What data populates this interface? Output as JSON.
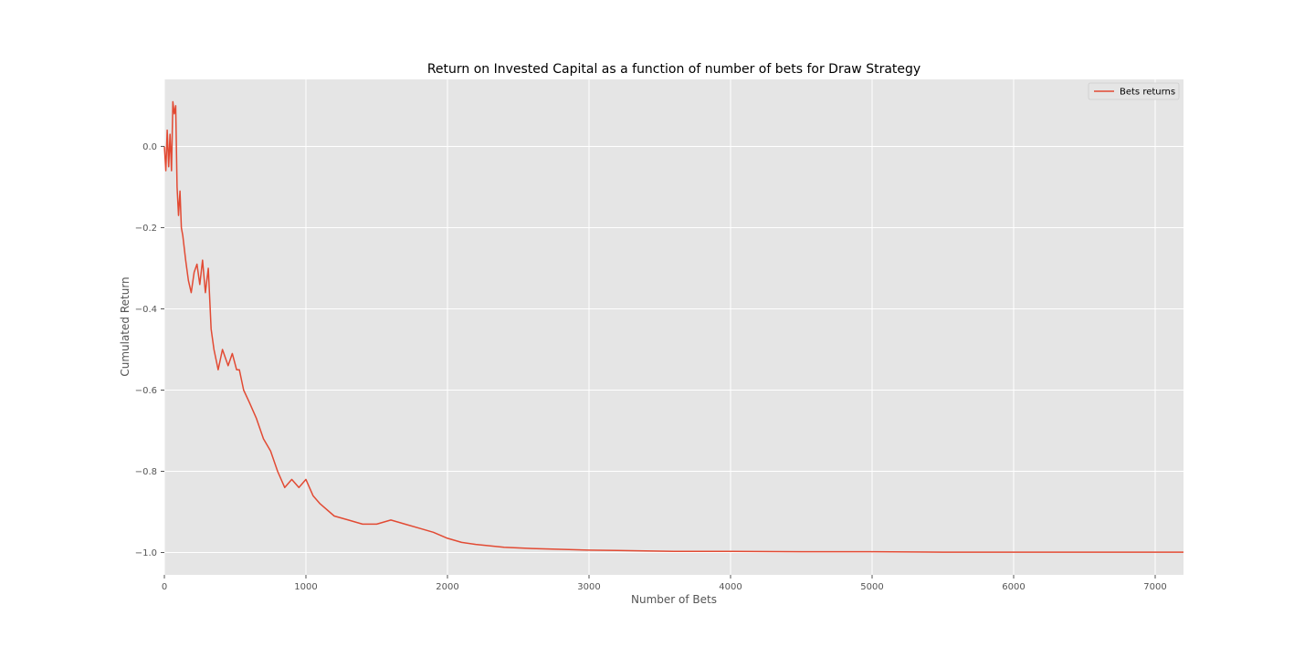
{
  "chart_data": {
    "type": "line",
    "title": "Return on Invested Capital as a function of number of bets for Draw Strategy",
    "xlabel": "Number of Bets",
    "ylabel": "Cumulated Return",
    "xlim": [
      0,
      7200
    ],
    "ylim": [
      -1.055,
      0.165
    ],
    "x_ticks": [
      0,
      1000,
      2000,
      3000,
      4000,
      5000,
      6000,
      7000
    ],
    "y_ticks": [
      0.0,
      -0.2,
      -0.4,
      -0.6,
      -0.8,
      -1.0
    ],
    "x_tick_labels": [
      "0",
      "1000",
      "2000",
      "3000",
      "4000",
      "5000",
      "6000",
      "7000"
    ],
    "y_tick_labels": [
      "0.0",
      "−0.2",
      "−0.4",
      "−0.6",
      "−0.8",
      "−1.0"
    ],
    "grid": true,
    "legend_position": "top-right",
    "colors": {
      "background": "#e5e5e5",
      "grid": "#ffffff",
      "line": "#e24a33"
    },
    "series": [
      {
        "name": "Bets returns",
        "x": [
          0,
          10,
          20,
          30,
          40,
          50,
          60,
          70,
          80,
          90,
          100,
          110,
          120,
          130,
          150,
          170,
          190,
          210,
          230,
          250,
          270,
          290,
          310,
          330,
          350,
          380,
          410,
          450,
          480,
          510,
          530,
          560,
          600,
          650,
          700,
          750,
          800,
          850,
          900,
          950,
          1000,
          1050,
          1100,
          1200,
          1300,
          1400,
          1500,
          1600,
          1650,
          1700,
          1800,
          1900,
          2000,
          2100,
          2200,
          2400,
          2600,
          2800,
          3000,
          3200,
          3400,
          3600,
          3800,
          4000,
          4500,
          5000,
          5500,
          6000,
          6500,
          7000,
          7200
        ],
        "y": [
          0.0,
          -0.06,
          0.04,
          -0.05,
          0.03,
          -0.06,
          0.11,
          0.08,
          0.1,
          -0.1,
          -0.17,
          -0.11,
          -0.2,
          -0.22,
          -0.28,
          -0.33,
          -0.36,
          -0.31,
          -0.29,
          -0.34,
          -0.28,
          -0.36,
          -0.3,
          -0.45,
          -0.5,
          -0.55,
          -0.5,
          -0.54,
          -0.51,
          -0.55,
          -0.55,
          -0.6,
          -0.63,
          -0.67,
          -0.72,
          -0.75,
          -0.8,
          -0.84,
          -0.82,
          -0.84,
          -0.82,
          -0.86,
          -0.88,
          -0.91,
          -0.92,
          -0.93,
          -0.93,
          -0.92,
          -0.925,
          -0.93,
          -0.94,
          -0.95,
          -0.965,
          -0.975,
          -0.98,
          -0.987,
          -0.99,
          -0.992,
          -0.994,
          -0.995,
          -0.996,
          -0.997,
          -0.997,
          -0.997,
          -0.998,
          -0.998,
          -0.999,
          -0.999,
          -0.999,
          -0.999,
          -0.999
        ]
      }
    ]
  }
}
